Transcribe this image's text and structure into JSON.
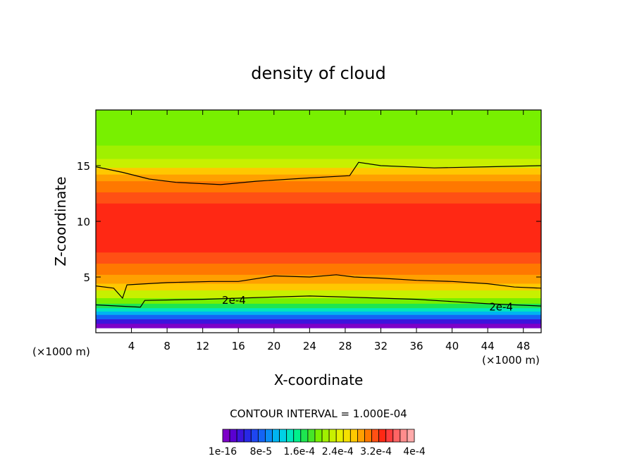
{
  "chart_data": {
    "type": "heatmap",
    "title": "density of cloud",
    "xlabel": "X-coordinate",
    "ylabel": "Z-coordinate",
    "x_unit": "(×1000 m)",
    "y_unit": "(×1000 m)",
    "xlim": [
      0,
      50
    ],
    "ylim": [
      0,
      20
    ],
    "x_ticks": [
      4,
      8,
      12,
      16,
      20,
      24,
      28,
      32,
      36,
      40,
      44,
      48
    ],
    "y_ticks": [
      5,
      10,
      15
    ],
    "contour_interval_text": "CONTOUR INTERVAL = 1.000E-04",
    "contour_label": "2e-4",
    "colorbar": {
      "labels": [
        "1e-16",
        "8e-5",
        "1.6e-4",
        "2.4e-4",
        "3.2e-4",
        "4e-4"
      ],
      "colors": [
        "#7d00c8",
        "#5a00d2",
        "#3c14dc",
        "#2828e6",
        "#1e46f0",
        "#1464f5",
        "#0a8cf5",
        "#00b4f0",
        "#00d2e6",
        "#00e6be",
        "#00f08c",
        "#1ee650",
        "#46e628",
        "#78f000",
        "#a0f000",
        "#c8f000",
        "#e6f000",
        "#f5e100",
        "#ffc800",
        "#ffa000",
        "#ff7800",
        "#ff5014",
        "#ff2814",
        "#ff3c3c",
        "#ff6464",
        "#ff8c8c",
        "#ffaaaa"
      ]
    },
    "bands": [
      {
        "z_top": 20.0,
        "color": "#78f000"
      },
      {
        "z_top": 16.8,
        "color": "#a0f000"
      },
      {
        "z_top": 15.6,
        "color": "#c8f000"
      },
      {
        "z_top": 14.8,
        "color": "#ffc800"
      },
      {
        "z_top": 14.2,
        "color": "#ffa000"
      },
      {
        "z_top": 13.6,
        "color": "#ff7800"
      },
      {
        "z_top": 12.6,
        "color": "#ff5014"
      },
      {
        "z_top": 11.6,
        "color": "#ff2814"
      },
      {
        "z_top": 7.2,
        "color": "#ff5014"
      },
      {
        "z_top": 6.2,
        "color": "#ff7800"
      },
      {
        "z_top": 5.2,
        "color": "#ffa000"
      },
      {
        "z_top": 4.4,
        "color": "#ffc800"
      },
      {
        "z_top": 3.8,
        "color": "#c8f000"
      },
      {
        "z_top": 3.1,
        "color": "#78f000"
      },
      {
        "z_top": 2.6,
        "color": "#1ee650"
      },
      {
        "z_top": 2.2,
        "color": "#00e6be"
      },
      {
        "z_top": 1.9,
        "color": "#00b4f0"
      },
      {
        "z_top": 1.6,
        "color": "#1464f5"
      },
      {
        "z_top": 1.2,
        "color": "#3c14dc"
      },
      {
        "z_top": 0.8,
        "color": "#7d00c8"
      },
      {
        "z_top": 0.4,
        "color": "#ffffff"
      }
    ],
    "contours": [
      {
        "name": "contour-upper",
        "points": [
          [
            0,
            14.9
          ],
          [
            3,
            14.4
          ],
          [
            6,
            13.8
          ],
          [
            9,
            13.5
          ],
          [
            14,
            13.3
          ],
          [
            18,
            13.6
          ],
          [
            24,
            13.9
          ],
          [
            28.5,
            14.1
          ],
          [
            29.5,
            15.3
          ],
          [
            32,
            15.0
          ],
          [
            38,
            14.8
          ],
          [
            44,
            14.9
          ],
          [
            50,
            15.0
          ]
        ]
      },
      {
        "name": "contour-middle",
        "points": [
          [
            0,
            4.2
          ],
          [
            2,
            4.0
          ],
          [
            3,
            3.1
          ],
          [
            3.5,
            4.3
          ],
          [
            8,
            4.5
          ],
          [
            13,
            4.6
          ],
          [
            16,
            4.6
          ],
          [
            20,
            5.1
          ],
          [
            24,
            5.0
          ],
          [
            27,
            5.2
          ],
          [
            29,
            5.0
          ],
          [
            32,
            4.9
          ],
          [
            36,
            4.7
          ],
          [
            40,
            4.6
          ],
          [
            44,
            4.4
          ],
          [
            47,
            4.1
          ],
          [
            50,
            4.0
          ]
        ]
      },
      {
        "name": "contour-2e4",
        "points": [
          [
            0,
            2.5
          ],
          [
            5,
            2.3
          ],
          [
            5.5,
            2.9
          ],
          [
            12,
            3.0
          ],
          [
            16,
            3.1
          ],
          [
            20,
            3.2
          ],
          [
            24,
            3.3
          ],
          [
            28,
            3.2
          ],
          [
            32,
            3.1
          ],
          [
            36,
            3.0
          ],
          [
            40,
            2.8
          ],
          [
            44,
            2.6
          ],
          [
            50,
            2.4
          ]
        ]
      }
    ],
    "contour_label_positions": [
      [
        15.5,
        2.9
      ],
      [
        45.5,
        2.3
      ]
    ]
  }
}
